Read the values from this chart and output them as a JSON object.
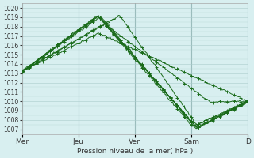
{
  "title": "Pression niveau de la mer( hPa )",
  "background_color": "#d8eff0",
  "grid_color": "#aacccc",
  "line_color": "#1a6b1a",
  "ylim": [
    1006.5,
    1020.5
  ],
  "yticks": [
    1007,
    1008,
    1009,
    1010,
    1011,
    1012,
    1013,
    1014,
    1015,
    1016,
    1017,
    1018,
    1019,
    1020
  ],
  "day_labels": [
    "Mer",
    "Jeu",
    "Ven",
    "Sam",
    "D"
  ],
  "day_positions": [
    0,
    48,
    96,
    144,
    192
  ],
  "num_points": 193
}
